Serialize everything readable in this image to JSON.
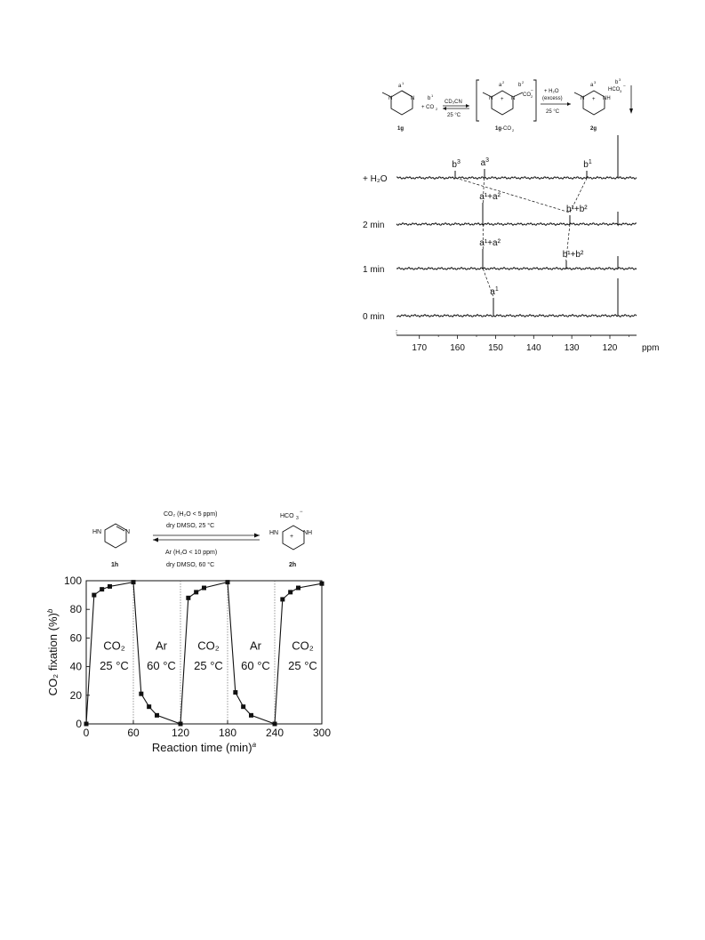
{
  "scheme_top": {
    "labels": {
      "a1": "a",
      "a1_sup": "1",
      "b1": "b",
      "b1_sup": "1",
      "plus_co2": "+ CO",
      "co2_sub": "2",
      "arrow_top": "CD₃CN",
      "arrow_bottom": "25 °C",
      "a2": "a",
      "a2_sup": "2",
      "b2": "b",
      "b2_sup": "2",
      "co2_minus": "CO",
      "co2_minus_sub": "2",
      "co2_minus_charge": "−",
      "plus_sign": "+",
      "step2_top1": "+ H₂O",
      "step2_top2": "(excess)",
      "step2_bottom": "25 °C",
      "a3": "a",
      "a3_sup": "3",
      "b3": "b",
      "b3_sup": "3",
      "hco3": "HCO",
      "hco3_sub": "3",
      "hco3_charge": "−",
      "nh": "NH",
      "n": "N",
      "cmpd1": "1g",
      "cmpd2": "1g",
      "cmpd2_suffix": "-CO",
      "cmpd2_sub": "2",
      "cmpd3": "2g"
    }
  },
  "nmr_chart": {
    "type": "line",
    "xlabel": "ppm",
    "xlim": [
      176,
      113
    ],
    "xticks": [
      170,
      160,
      150,
      140,
      130,
      120
    ],
    "traces": [
      {
        "name": "+ H₂O",
        "peaks": [
          {
            "ppm": 160.5,
            "h": 8,
            "label": "b",
            "sup": "3"
          },
          {
            "ppm": 153.0,
            "h": 10,
            "label": "a",
            "sup": "3"
          },
          {
            "ppm": 126.0,
            "h": 8,
            "label": "b",
            "sup": "1"
          },
          {
            "ppm": 118.0,
            "h": 48
          }
        ]
      },
      {
        "name": "2 min",
        "peaks": [
          {
            "ppm": 153.3,
            "h": 24,
            "label": "a¹+a²"
          },
          {
            "ppm": 130.5,
            "h": 10,
            "label": "b¹+b²"
          },
          {
            "ppm": 118.0,
            "h": 14
          }
        ]
      },
      {
        "name": "1 min",
        "peaks": [
          {
            "ppm": 153.3,
            "h": 22,
            "label": "a¹+a²"
          },
          {
            "ppm": 131.5,
            "h": 9,
            "label": "b¹+b²"
          },
          {
            "ppm": 118.0,
            "h": 14
          }
        ]
      },
      {
        "name": "0 min",
        "peaks": [
          {
            "ppm": 150.5,
            "h": 20,
            "label": "a",
            "sup": "1"
          },
          {
            "ppm": 118.0,
            "h": 42
          }
        ]
      }
    ]
  },
  "scheme_bottom": {
    "hn": "HN",
    "n": "N",
    "cmpd1": "1h",
    "cmpd2": "2h",
    "hco3": "HCO",
    "hco3_sub": "3",
    "hco3_charge": "−",
    "nh": "NH",
    "plus": "+",
    "fwd_line1": "CO₂ (H₂O < 5 ppm)",
    "fwd_line2": "dry DMSO, 25 °C",
    "rev_line1": "Ar (H₂O < 10 ppm)",
    "rev_line2": "dry DMSO, 60 °C"
  },
  "chart_data": {
    "type": "line",
    "xlabel": "Reaction time (min)",
    "xlabel_sup": "a",
    "ylabel": "CO₂ fixation (%)",
    "ylabel_sup": "b",
    "xlim": [
      0,
      300
    ],
    "ylim": [
      0,
      100
    ],
    "xticks": [
      0,
      60,
      120,
      180,
      240,
      300
    ],
    "yticks": [
      0,
      20,
      40,
      60,
      80,
      100
    ],
    "divider_lines_x": [
      60,
      120,
      180,
      240
    ],
    "regions": [
      {
        "line1": "CO₂",
        "line2": "25 °C",
        "x": 30
      },
      {
        "line1": "Ar",
        "line2": "60 °C",
        "x": 90
      },
      {
        "line1": "CO₂",
        "line2": "25 °C",
        "x": 150
      },
      {
        "line1": "Ar",
        "line2": "60 °C",
        "x": 210
      },
      {
        "line1": "CO₂",
        "line2": "25 °C",
        "x": 270
      }
    ],
    "series": [
      {
        "x": [
          0,
          10,
          20,
          30,
          60,
          70,
          80,
          90,
          120,
          130,
          140,
          150,
          180,
          190,
          200,
          210,
          240,
          250,
          260,
          270,
          300
        ],
        "y": [
          0,
          90,
          94,
          96,
          99,
          21,
          12,
          6,
          0,
          88,
          92,
          95,
          99,
          22,
          12,
          6,
          0,
          87,
          92,
          95,
          98
        ]
      }
    ]
  }
}
